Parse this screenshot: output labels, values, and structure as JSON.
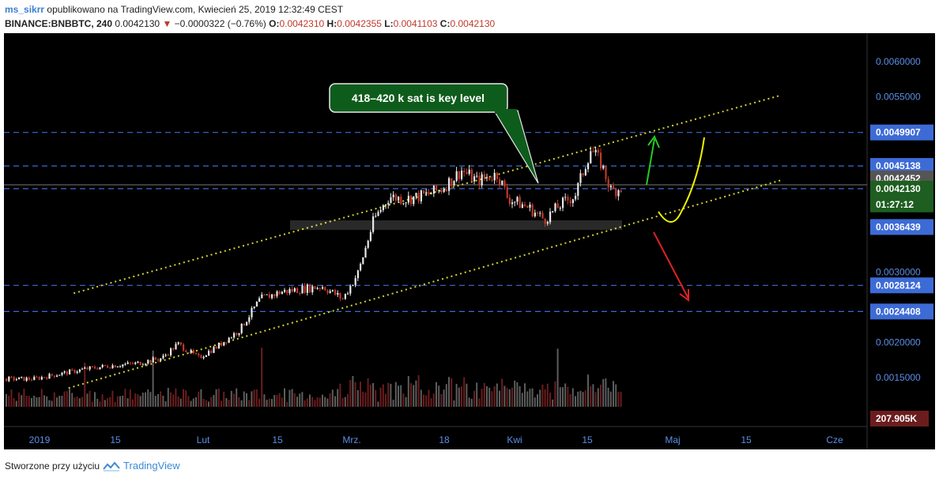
{
  "header": {
    "user": "ms_sikrr",
    "published": "opublikowano na TradingView.com, Kwiecień 25, 2019 12:32:49 CEST",
    "symbol": "BINANCE:BNBBTC, 240",
    "last": "0.0042130",
    "change": "−0.0000322 (−0.76%)",
    "o_label": "O:",
    "o": "0.0042310",
    "h_label": "H:",
    "h": "0.0042355",
    "l_label": "L:",
    "l": "0.0041103",
    "c_label": "C:",
    "c": "0.0042130"
  },
  "annotation": "418–420 k sat is key level",
  "footer": {
    "text": "Stworzone przy użyciu",
    "brand": "TradingView"
  },
  "colors": {
    "background": "#000000",
    "up": "#e8e8e8",
    "down": "#c0392b",
    "level_line": "#3d6bd6",
    "channel": "#d4d22a",
    "bull_arrow": "#22cc22",
    "bear_arrow": "#dd2222",
    "curve": "#f2f200",
    "callout": "#0e5c1b"
  },
  "chart_data": {
    "type": "candlestick",
    "title": "BINANCE:BNBBTC, 240",
    "ylim": [
      0.00115,
      0.0063
    ],
    "y_ticks": [
      "0.0060000",
      "0.0055000",
      "0.0030000",
      "0.0020000",
      "0.0015000"
    ],
    "x_ticks": [
      "2019",
      "15",
      "Lut",
      "15",
      "Mrz.",
      "18",
      "Kwi",
      "15",
      "Maj",
      "15",
      "Cze"
    ],
    "price_series": [
      {
        "x": "2019-01-01",
        "y": 0.00148
      },
      {
        "x": "2019-01-06",
        "y": 0.00155
      },
      {
        "x": "2019-01-11",
        "y": 0.00162
      },
      {
        "x": "2019-01-16",
        "y": 0.00167
      },
      {
        "x": "2019-01-21",
        "y": 0.0017
      },
      {
        "x": "2019-01-26",
        "y": 0.00178
      },
      {
        "x": "2019-01-29",
        "y": 0.00198
      },
      {
        "x": "2019-02-02",
        "y": 0.00178
      },
      {
        "x": "2019-02-06",
        "y": 0.00196
      },
      {
        "x": "2019-02-10",
        "y": 0.00218
      },
      {
        "x": "2019-02-14",
        "y": 0.00262
      },
      {
        "x": "2019-02-18",
        "y": 0.00272
      },
      {
        "x": "2019-02-22",
        "y": 0.00276
      },
      {
        "x": "2019-02-26",
        "y": 0.0028
      },
      {
        "x": "2019-03-02",
        "y": 0.00262
      },
      {
        "x": "2019-03-05",
        "y": 0.003
      },
      {
        "x": "2019-03-08",
        "y": 0.00375
      },
      {
        "x": "2019-03-11",
        "y": 0.00408
      },
      {
        "x": "2019-03-14",
        "y": 0.00404
      },
      {
        "x": "2019-03-18",
        "y": 0.0041
      },
      {
        "x": "2019-03-21",
        "y": 0.00418
      },
      {
        "x": "2019-03-25",
        "y": 0.00445
      },
      {
        "x": "2019-03-28",
        "y": 0.0043
      },
      {
        "x": "2019-04-01",
        "y": 0.0044
      },
      {
        "x": "2019-04-03",
        "y": 0.00405
      },
      {
        "x": "2019-04-07",
        "y": 0.00392
      },
      {
        "x": "2019-04-10",
        "y": 0.00375
      },
      {
        "x": "2019-04-13",
        "y": 0.00395
      },
      {
        "x": "2019-04-16",
        "y": 0.0041
      },
      {
        "x": "2019-04-19",
        "y": 0.00475
      },
      {
        "x": "2019-04-21",
        "y": 0.00455
      },
      {
        "x": "2019-04-23",
        "y": 0.00415
      },
      {
        "x": "2019-04-25",
        "y": 0.00421
      }
    ],
    "horizontal_levels": [
      {
        "value": 0.0049907,
        "label": "0.0049907"
      },
      {
        "value": 0.0045138,
        "label": "0.0045138"
      },
      {
        "value": 0.00419,
        "label": "0.0041900"
      },
      {
        "value": 0.0028124,
        "label": "0.0028124"
      },
      {
        "value": 0.0024408,
        "label": "0.0024408"
      }
    ],
    "price_labels": [
      {
        "value": 0.0042452,
        "label": "0.0042452",
        "color": "#555555"
      },
      {
        "value": 0.004213,
        "label": "0.0042130",
        "color": "#1e5e20"
      },
      {
        "value": 0.0036439,
        "label": "0.0036439",
        "color": "#3d6bd6"
      }
    ],
    "countdown": "01:27:12",
    "volume_label": "207.905K",
    "channel": {
      "upper": [
        {
          "x": "2019-01-09",
          "y": 0.0027
        },
        {
          "x": "2019-05-26",
          "y": 0.00552
        }
      ],
      "lower": [
        {
          "x": "2019-01-08",
          "y": 0.00135
        },
        {
          "x": "2019-05-26",
          "y": 0.00431
        }
      ]
    }
  }
}
